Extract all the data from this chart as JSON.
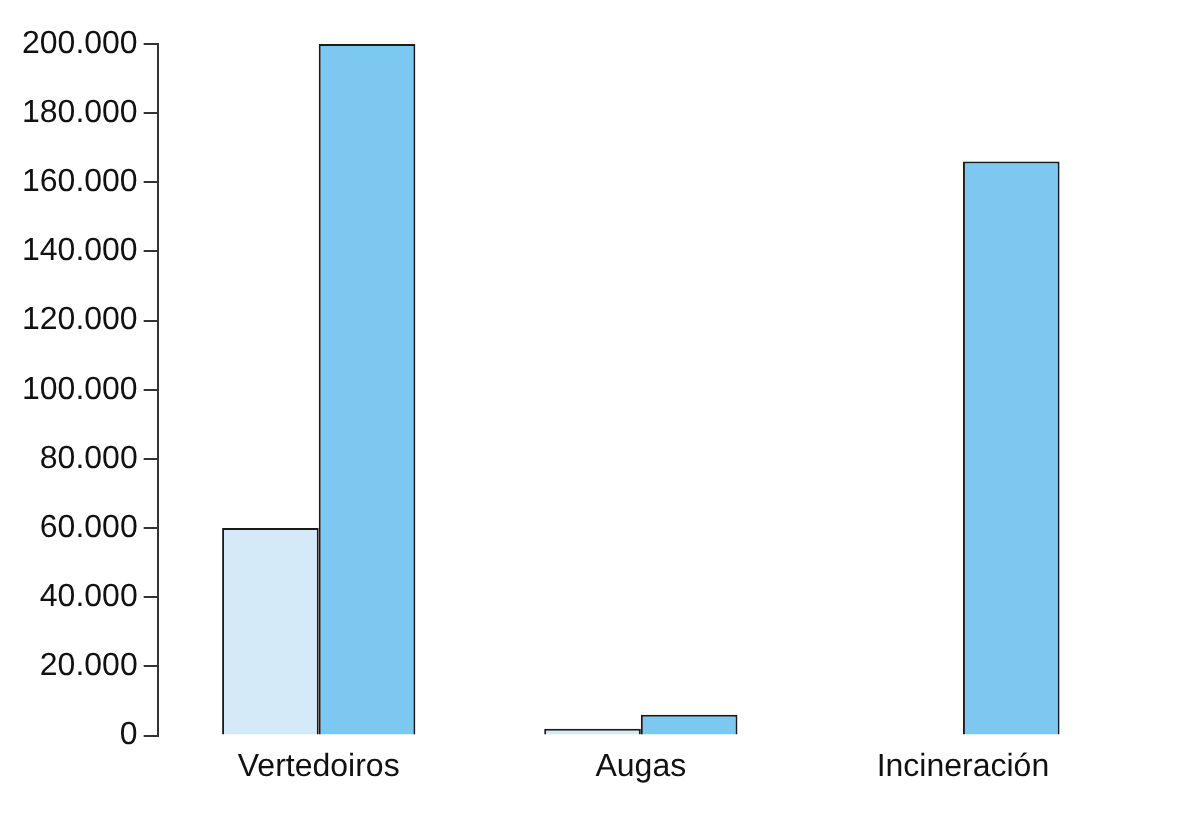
{
  "chart_data": {
    "type": "bar",
    "categories": [
      "Vertedoiros",
      "Augas",
      "Incineración"
    ],
    "series": [
      {
        "color": "#d4eaf9",
        "values": [
          60000,
          2000,
          0
        ]
      },
      {
        "color": "#7dc8f0",
        "values": [
          200000,
          6000,
          166000
        ]
      }
    ],
    "ylim": [
      0,
      200000
    ],
    "yticks": [
      {
        "value": 0,
        "label": "0"
      },
      {
        "value": 20000,
        "label": "20.000"
      },
      {
        "value": 40000,
        "label": "40.000"
      },
      {
        "value": 60000,
        "label": "60.000"
      },
      {
        "value": 80000,
        "label": "80.000"
      },
      {
        "value": 100000,
        "label": "100.000"
      },
      {
        "value": 120000,
        "label": "120.000"
      },
      {
        "value": 140000,
        "label": "140.000"
      },
      {
        "value": 160000,
        "label": "160.000"
      },
      {
        "value": 180000,
        "label": "180.000"
      },
      {
        "value": 200000,
        "label": "200.000"
      }
    ],
    "grid": false,
    "legend": false
  }
}
